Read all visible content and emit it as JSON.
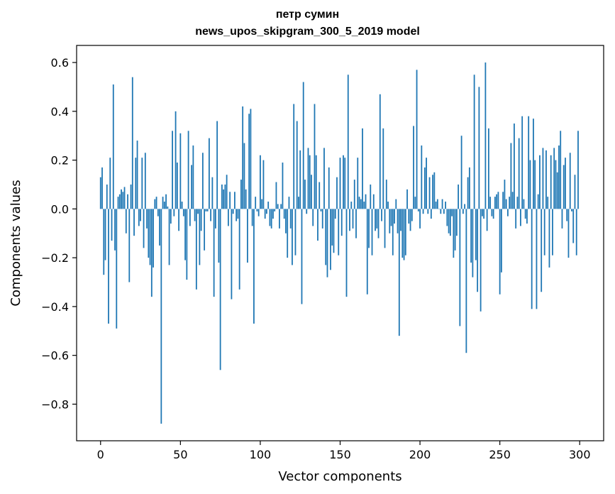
{
  "chart_data": {
    "type": "bar",
    "title": [
      "петр сумин",
      "news_upos_skipgram_300_5_2019 model"
    ],
    "xlabel": "Vector components",
    "ylabel": "Components values",
    "xlim": [
      -15,
      315
    ],
    "ylim": [
      -0.95,
      0.67
    ],
    "xticks": [
      0,
      50,
      100,
      150,
      200,
      250,
      300
    ],
    "xtick_labels": [
      "0",
      "50",
      "100",
      "150",
      "200",
      "250",
      "300"
    ],
    "yticks": [
      -0.8,
      -0.6,
      -0.4,
      -0.2,
      0.0,
      0.2,
      0.4,
      0.6
    ],
    "ytick_labels": [
      "−0.8",
      "−0.6",
      "−0.4",
      "−0.2",
      "0.0",
      "0.2",
      "0.4",
      "0.6"
    ],
    "grid": false,
    "bar_color": "#1f77b4",
    "x": "0..299",
    "values": [
      0.13,
      0.17,
      -0.27,
      -0.21,
      0.1,
      -0.47,
      0.21,
      -0.13,
      0.51,
      -0.17,
      -0.49,
      0.05,
      0.06,
      0.08,
      0.07,
      0.09,
      -0.1,
      0.06,
      -0.3,
      0.1,
      0.54,
      -0.11,
      0.21,
      0.28,
      -0.07,
      -0.05,
      0.21,
      -0.16,
      0.23,
      -0.08,
      -0.2,
      -0.23,
      -0.36,
      -0.24,
      0.04,
      0.05,
      -0.03,
      -0.15,
      -0.88,
      0.05,
      0.03,
      0.06,
      0.01,
      -0.23,
      -0.06,
      0.32,
      -0.03,
      0.4,
      0.19,
      -0.09,
      0.31,
      0.03,
      -0.03,
      -0.21,
      -0.29,
      0.32,
      -0.07,
      0.18,
      0.26,
      -0.05,
      -0.33,
      -0.02,
      -0.23,
      -0.09,
      0.23,
      -0.17,
      -0.01,
      -0.01,
      0.29,
      -0.05,
      0.13,
      -0.36,
      -0.08,
      0.36,
      -0.22,
      -0.66,
      0.1,
      0.08,
      0.1,
      0.14,
      -0.07,
      0.07,
      -0.37,
      -0.02,
      0.07,
      -0.05,
      -0.04,
      -0.33,
      0.12,
      0.42,
      0.27,
      0.08,
      -0.22,
      0.39,
      0.41,
      -0.07,
      -0.47,
      0.05,
      -0.01,
      -0.03,
      0.22,
      0.04,
      0.2,
      -0.04,
      -0.02,
      0.03,
      -0.07,
      -0.08,
      -0.04,
      -0.01,
      0.11,
      0.02,
      -0.08,
      0.02,
      0.19,
      -0.04,
      -0.1,
      -0.2,
      0.05,
      -0.08,
      -0.23,
      0.43,
      -0.19,
      0.36,
      0.05,
      0.24,
      -0.39,
      0.52,
      0.12,
      -0.02,
      0.25,
      0.22,
      0.14,
      -0.07,
      0.43,
      0.22,
      -0.13,
      0.11,
      -0.01,
      -0.08,
      0.25,
      -0.23,
      -0.28,
      0.17,
      -0.25,
      -0.15,
      -0.18,
      -0.04,
      0.13,
      -0.19,
      0.21,
      -0.11,
      0.22,
      0.21,
      -0.36,
      0.55,
      -0.09,
      0.03,
      -0.08,
      0.12,
      -0.12,
      0.21,
      0.05,
      0.04,
      0.33,
      0.03,
      0.06,
      -0.35,
      -0.16,
      0.1,
      -0.19,
      0.06,
      -0.09,
      -0.08,
      -0.12,
      0.47,
      -0.05,
      0.33,
      -0.16,
      0.12,
      0.03,
      -0.1,
      -0.07,
      -0.19,
      -0.06,
      0.04,
      -0.1,
      -0.52,
      -0.09,
      -0.2,
      -0.21,
      -0.19,
      0.08,
      -0.06,
      -0.09,
      -0.05,
      0.34,
      0.05,
      0.57,
      -0.01,
      -0.08,
      0.26,
      -0.02,
      0.17,
      0.21,
      -0.02,
      0.13,
      -0.04,
      0.14,
      0.15,
      0.03,
      0.04,
      0.0,
      -0.02,
      0.04,
      -0.02,
      0.03,
      -0.07,
      -0.1,
      -0.11,
      -0.03,
      -0.2,
      -0.17,
      -0.11,
      0.1,
      -0.48,
      0.3,
      -0.02,
      0.02,
      -0.59,
      0.13,
      0.17,
      -0.22,
      -0.28,
      0.55,
      -0.21,
      -0.34,
      0.5,
      -0.42,
      -0.03,
      -0.04,
      0.6,
      -0.09,
      0.33,
      0.05,
      -0.03,
      -0.04,
      0.05,
      0.06,
      0.07,
      -0.35,
      -0.26,
      0.07,
      0.12,
      0.04,
      -0.03,
      0.05,
      0.27,
      0.07,
      0.35,
      -0.08,
      0.05,
      0.29,
      -0.07,
      0.38,
      0.04,
      -0.04,
      -0.06,
      0.38,
      0.2,
      -0.41,
      0.37,
      0.2,
      -0.41,
      0.06,
      0.22,
      -0.34,
      0.25,
      -0.19,
      0.24,
      0.05,
      -0.24,
      0.22,
      -0.19,
      0.25,
      0.2,
      0.15,
      0.26,
      0.32,
      -0.08,
      0.18,
      0.21,
      -0.05,
      -0.2,
      0.23,
      -0.01,
      -0.14,
      0.14,
      -0.19,
      0.32
    ]
  }
}
